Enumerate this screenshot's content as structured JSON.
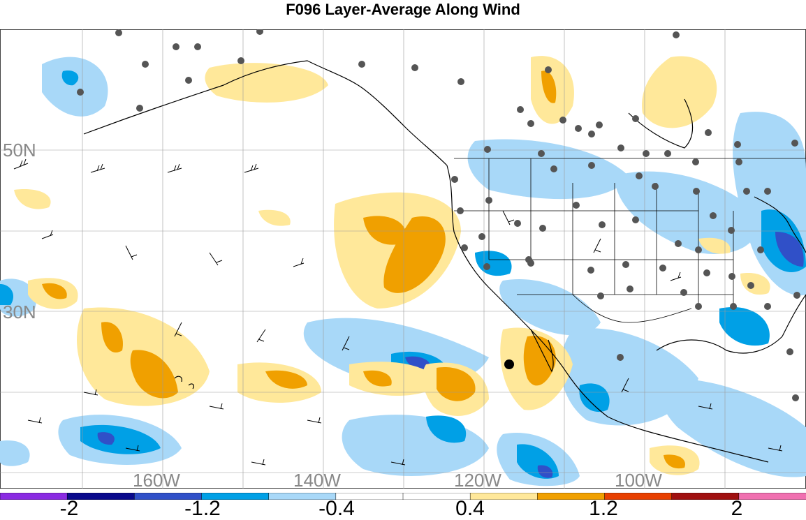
{
  "title": "F096 Layer-Average Along Wind",
  "map": {
    "lat_labels": [
      "50N",
      "30N"
    ],
    "lon_labels": [
      "160W",
      "140W",
      "120W",
      "100W"
    ],
    "label_color": "#888888"
  },
  "colorbar": {
    "colors": [
      "#8a2be2",
      "#0a0a8c",
      "#3050c8",
      "#00a0e6",
      "#a8d8f8",
      "#ffffff",
      "#ffffff",
      "#ffe89a",
      "#f0a000",
      "#e84000",
      "#a01010",
      "#f070b0"
    ],
    "tick_labels": [
      "-2",
      "-1.2",
      "-0.4",
      "0.4",
      "1.2",
      "2"
    ]
  }
}
